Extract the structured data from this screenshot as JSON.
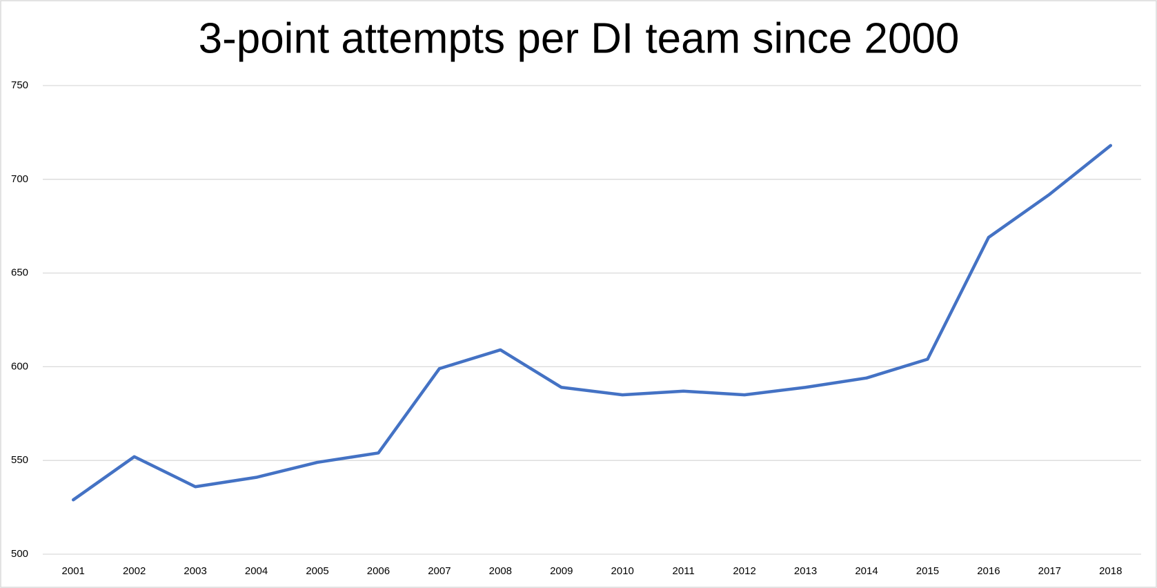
{
  "chart_data": {
    "type": "line",
    "title": "3-point attempts per DI team since 2000",
    "categories": [
      "2001",
      "2002",
      "2003",
      "2004",
      "2005",
      "2006",
      "2007",
      "2008",
      "2009",
      "2010",
      "2011",
      "2012",
      "2013",
      "2014",
      "2015",
      "2016",
      "2017",
      "2018"
    ],
    "values": [
      529,
      552,
      536,
      541,
      549,
      554,
      599,
      609,
      589,
      585,
      587,
      585,
      589,
      594,
      604,
      669,
      692,
      718
    ],
    "color": "#4472c4",
    "ylim": [
      500,
      750
    ],
    "yticks": [
      500,
      550,
      600,
      650,
      700,
      750
    ],
    "grid": true
  }
}
